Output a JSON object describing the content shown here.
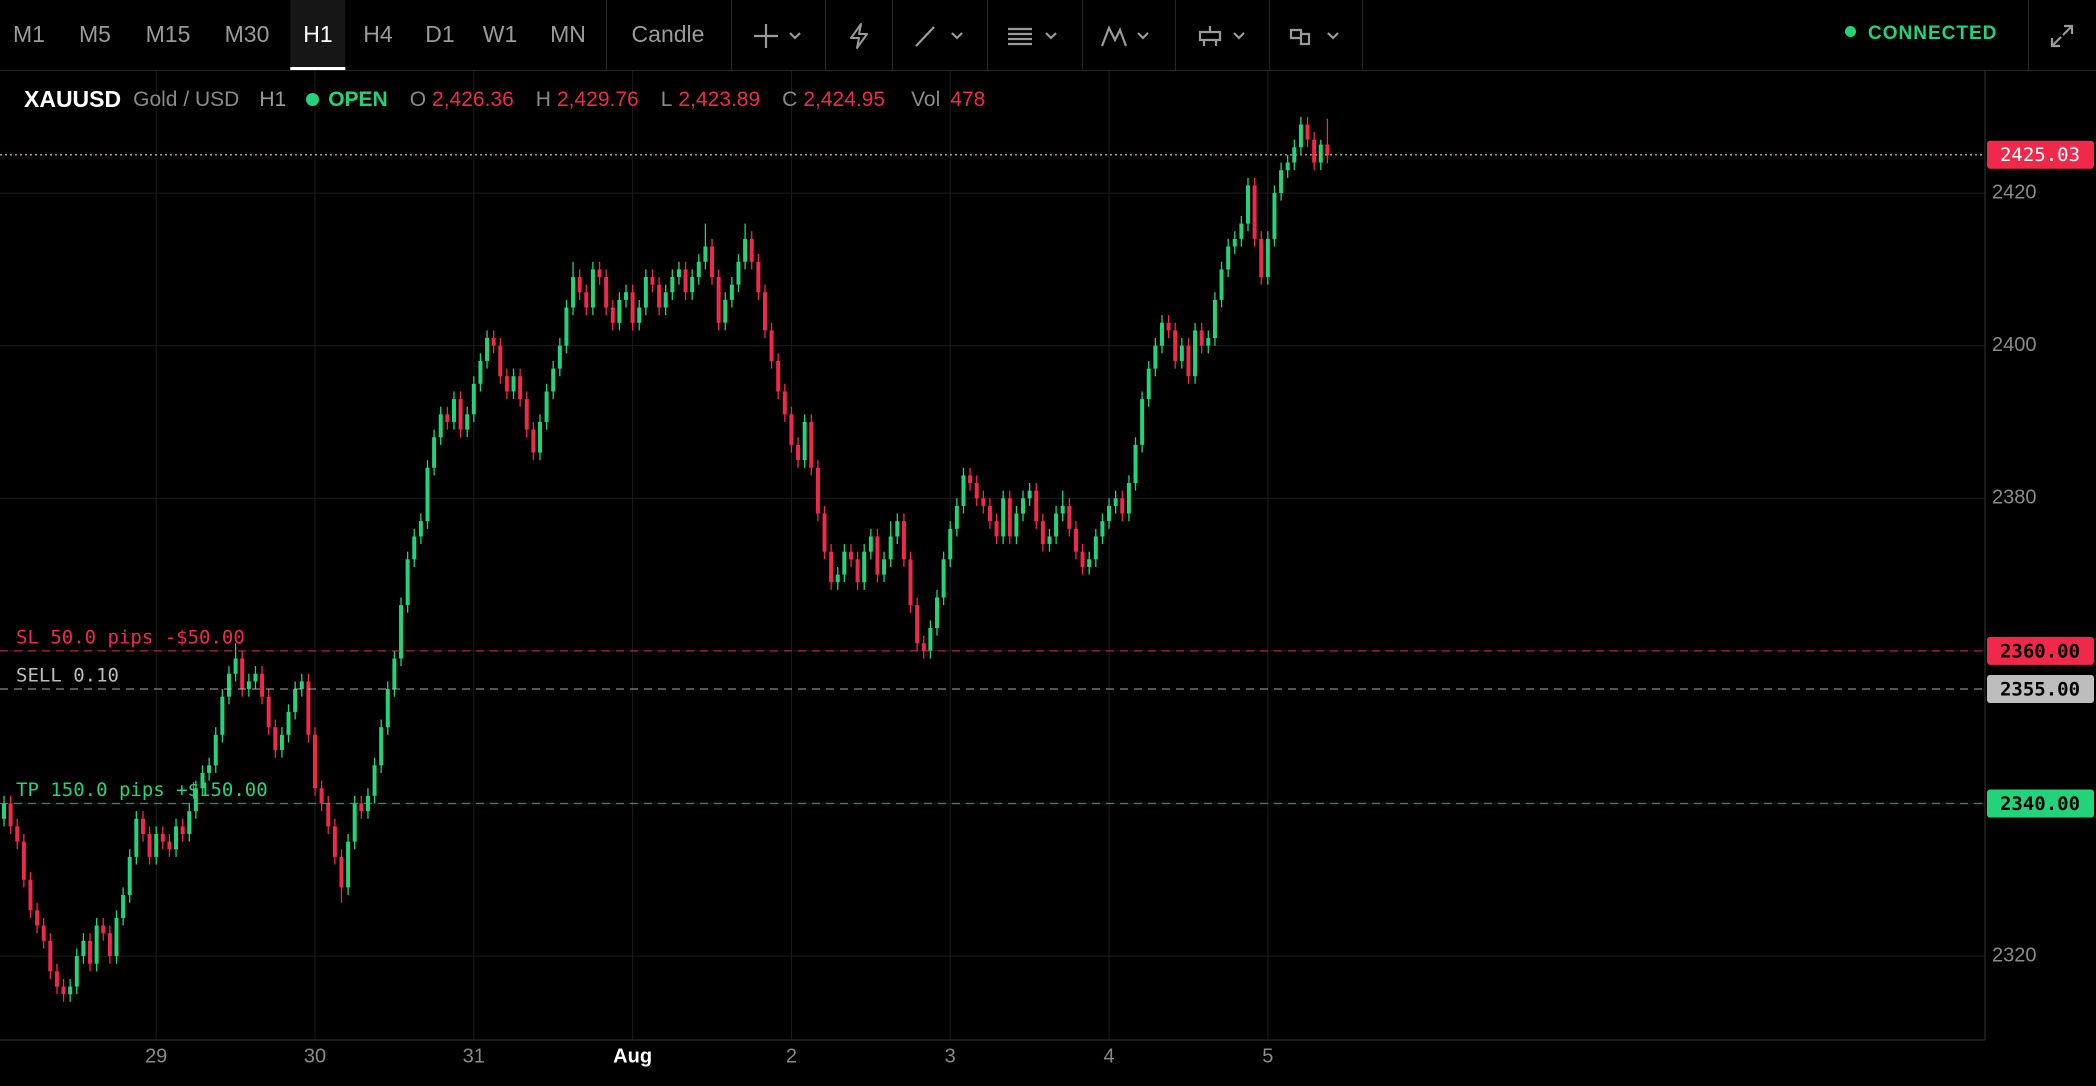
{
  "toolbar": {
    "timeframes": [
      "M1",
      "M5",
      "M15",
      "M30",
      "H1",
      "H4",
      "D1",
      "W1",
      "MN"
    ],
    "active_timeframe": "H1",
    "chart_style": "Candle",
    "status": "CONNECTED"
  },
  "symbol": {
    "ticker": "XAUUSD",
    "name": "Gold / USD",
    "timeframe": "H1",
    "session": "OPEN",
    "ohlc": [
      {
        "key": "O",
        "value": "2,426.36"
      },
      {
        "key": "H",
        "value": "2,429.76"
      },
      {
        "key": "L",
        "value": "2,423.89"
      },
      {
        "key": "C",
        "value": "2,424.95"
      }
    ],
    "volume": {
      "key": "Vol",
      "value": 478
    }
  },
  "chart_data": {
    "type": "candlestick",
    "up_color": "#22d37a",
    "down_color": "#f0284a",
    "grid": true,
    "ylim": [
      2309,
      2436
    ],
    "yticks": [
      2320,
      2340,
      2360,
      2380,
      2400,
      2420
    ],
    "categories": [
      null,
      null,
      null,
      null,
      null,
      null,
      null,
      null,
      null,
      null,
      null,
      null,
      null,
      null,
      null,
      null,
      null,
      null,
      null,
      null,
      null,
      null,
      null,
      "29",
      null,
      null,
      null,
      null,
      null,
      null,
      null,
      null,
      null,
      null,
      null,
      null,
      null,
      null,
      null,
      null,
      null,
      null,
      null,
      null,
      null,
      null,
      null,
      "30",
      null,
      null,
      null,
      null,
      null,
      null,
      null,
      null,
      null,
      null,
      null,
      null,
      null,
      null,
      null,
      null,
      null,
      null,
      null,
      null,
      null,
      null,
      null,
      "31",
      null,
      null,
      null,
      null,
      null,
      null,
      null,
      null,
      null,
      null,
      null,
      null,
      null,
      null,
      null,
      null,
      null,
      null,
      null,
      null,
      null,
      null,
      null,
      "Aug",
      null,
      null,
      null,
      null,
      null,
      null,
      null,
      null,
      null,
      null,
      null,
      null,
      null,
      null,
      null,
      null,
      null,
      null,
      null,
      null,
      null,
      null,
      null,
      "2",
      null,
      null,
      null,
      null,
      null,
      null,
      null,
      null,
      null,
      null,
      null,
      null,
      null,
      null,
      null,
      null,
      null,
      null,
      null,
      null,
      null,
      null,
      null,
      "3",
      null,
      null,
      null,
      null,
      null,
      null,
      null,
      null,
      null,
      null,
      null,
      null,
      null,
      null,
      null,
      null,
      null,
      null,
      null,
      null,
      null,
      null,
      null,
      "4",
      null,
      null,
      null,
      null,
      null,
      null,
      null,
      null,
      null,
      null,
      null,
      null,
      null,
      null,
      null,
      null,
      null,
      null,
      null,
      null,
      null,
      null,
      null,
      "5",
      null,
      null,
      null,
      null,
      null,
      null,
      null,
      null,
      null
    ],
    "open": [
      2338,
      2340,
      2337,
      2335,
      2330,
      2326,
      2324,
      2322,
      2318,
      2316,
      2315,
      2316,
      2320,
      2322,
      2319,
      2324,
      2323,
      2320,
      2325,
      2328,
      2333,
      2338,
      2336,
      2333,
      2336,
      2335,
      2334,
      2337,
      2336,
      2339,
      2342,
      2344,
      2345,
      2349,
      2354,
      2357,
      2359,
      2355,
      2356,
      2357,
      2354,
      2350,
      2347,
      2349,
      2352,
      2355,
      2356,
      2349,
      2342,
      2340,
      2337,
      2333,
      2329,
      2335,
      2340,
      2339,
      2341,
      2345,
      2350,
      2355,
      2359,
      2366,
      2372,
      2375,
      2377,
      2384,
      2388,
      2391,
      2390,
      2393,
      2389,
      2391,
      2395,
      2398,
      2401,
      2400,
      2396,
      2394,
      2396,
      2393,
      2389,
      2386,
      2390,
      2394,
      2397,
      2400,
      2405,
      2409,
      2407,
      2405,
      2410,
      2409,
      2405,
      2403,
      2406,
      2407,
      2403,
      2405,
      2409,
      2408,
      2405,
      2407,
      2409,
      2410,
      2407,
      2409,
      2411,
      2413,
      2409,
      2403,
      2406,
      2408,
      2411,
      2414,
      2411,
      2407,
      2402,
      2398,
      2394,
      2391,
      2387,
      2385,
      2390,
      2384,
      2378,
      2373,
      2369,
      2370,
      2373,
      2372,
      2369,
      2373,
      2375,
      2370,
      2372,
      2375,
      2377,
      2372,
      2366,
      2361,
      2360,
      2363,
      2367,
      2372,
      2376,
      2379,
      2383,
      2382,
      2380,
      2379,
      2377,
      2375,
      2380,
      2375,
      2378,
      2380,
      2381,
      2377,
      2374,
      2375,
      2378,
      2379,
      2376,
      2373,
      2371,
      2372,
      2375,
      2377,
      2379,
      2380,
      2378,
      2382,
      2387,
      2393,
      2397,
      2400,
      2403,
      2402,
      2398,
      2400,
      2396,
      2402,
      2400,
      2401,
      2406,
      2410,
      2413,
      2414,
      2416,
      2421,
      2414,
      2409,
      2414,
      2420,
      2423,
      2424,
      2426,
      2429,
      2427,
      2424,
      2426.36
    ],
    "high": [
      2341,
      2341,
      2338,
      2336,
      2331,
      2327,
      2325,
      2323,
      2319,
      2317,
      2317,
      2321,
      2323,
      2323,
      2325,
      2325,
      2324,
      2326,
      2329,
      2334,
      2339,
      2339,
      2337,
      2337,
      2337,
      2336,
      2338,
      2338,
      2340,
      2343,
      2345,
      2346,
      2350,
      2355,
      2358,
      2361,
      2360,
      2357,
      2358,
      2358,
      2355,
      2351,
      2350,
      2353,
      2356,
      2357,
      2357,
      2350,
      2343,
      2341,
      2338,
      2334,
      2336,
      2341,
      2341,
      2342,
      2346,
      2351,
      2356,
      2360,
      2367,
      2373,
      2376,
      2378,
      2385,
      2389,
      2392,
      2392,
      2394,
      2394,
      2392,
      2396,
      2399,
      2402,
      2402,
      2401,
      2397,
      2397,
      2397,
      2394,
      2390,
      2391,
      2395,
      2398,
      2401,
      2406,
      2411,
      2410,
      2408,
      2411,
      2411,
      2410,
      2406,
      2407,
      2408,
      2408,
      2406,
      2410,
      2410,
      2409,
      2408,
      2410,
      2411,
      2411,
      2410,
      2412,
      2416,
      2414,
      2410,
      2407,
      2409,
      2412,
      2416,
      2415,
      2412,
      2408,
      2403,
      2399,
      2395,
      2392,
      2388,
      2391,
      2391,
      2385,
      2379,
      2374,
      2371,
      2374,
      2374,
      2373,
      2374,
      2376,
      2376,
      2373,
      2377,
      2378,
      2378,
      2373,
      2367,
      2362,
      2364,
      2368,
      2373,
      2377,
      2380,
      2384,
      2384,
      2383,
      2381,
      2380,
      2378,
      2381,
      2381,
      2379,
      2381,
      2382,
      2382,
      2378,
      2376,
      2379,
      2381,
      2380,
      2377,
      2374,
      2373,
      2376,
      2378,
      2380,
      2381,
      2381,
      2383,
      2388,
      2394,
      2398,
      2401,
      2404,
      2404,
      2403,
      2401,
      2401,
      2403,
      2403,
      2402,
      2407,
      2411,
      2414,
      2415,
      2417,
      2422,
      2422,
      2415,
      2415,
      2421,
      2424,
      2425,
      2427,
      2430,
      2430,
      2428,
      2427,
      2429.76
    ],
    "low": [
      2337,
      2336,
      2334,
      2329,
      2325,
      2323,
      2321,
      2317,
      2315,
      2314,
      2314,
      2315,
      2319,
      2318,
      2318,
      2322,
      2319,
      2319,
      2324,
      2327,
      2332,
      2335,
      2332,
      2332,
      2334,
      2333,
      2333,
      2335,
      2335,
      2338,
      2341,
      2343,
      2344,
      2348,
      2353,
      2356,
      2354,
      2354,
      2355,
      2353,
      2349,
      2346,
      2346,
      2348,
      2351,
      2354,
      2348,
      2341,
      2339,
      2336,
      2332,
      2327,
      2328,
      2334,
      2338,
      2338,
      2340,
      2344,
      2349,
      2354,
      2358,
      2365,
      2371,
      2374,
      2376,
      2383,
      2387,
      2389,
      2389,
      2388,
      2388,
      2390,
      2394,
      2397,
      2399,
      2395,
      2393,
      2393,
      2392,
      2388,
      2385,
      2385,
      2389,
      2393,
      2396,
      2399,
      2404,
      2406,
      2404,
      2404,
      2408,
      2404,
      2402,
      2402,
      2405,
      2402,
      2402,
      2404,
      2407,
      2404,
      2404,
      2406,
      2408,
      2406,
      2406,
      2408,
      2410,
      2408,
      2402,
      2402,
      2405,
      2407,
      2410,
      2410,
      2406,
      2401,
      2397,
      2393,
      2390,
      2386,
      2384,
      2384,
      2383,
      2377,
      2372,
      2368,
      2368,
      2369,
      2371,
      2368,
      2368,
      2372,
      2369,
      2369,
      2371,
      2374,
      2371,
      2365,
      2360,
      2359,
      2359,
      2362,
      2366,
      2371,
      2375,
      2378,
      2381,
      2379,
      2378,
      2376,
      2374,
      2374,
      2374,
      2374,
      2377,
      2379,
      2376,
      2373,
      2373,
      2374,
      2377,
      2375,
      2372,
      2370,
      2370,
      2371,
      2374,
      2376,
      2378,
      2377,
      2377,
      2381,
      2386,
      2392,
      2396,
      2399,
      2401,
      2397,
      2397,
      2395,
      2395,
      2399,
      2399,
      2400,
      2405,
      2409,
      2412,
      2413,
      2415,
      2413,
      2408,
      2408,
      2413,
      2419,
      2422,
      2423,
      2425,
      2426,
      2423,
      2423,
      2423.89
    ],
    "close": [
      2340,
      2337,
      2335,
      2330,
      2326,
      2324,
      2322,
      2318,
      2316,
      2315,
      2316,
      2320,
      2322,
      2319,
      2324,
      2323,
      2320,
      2325,
      2328,
      2333,
      2338,
      2336,
      2333,
      2336,
      2335,
      2334,
      2337,
      2336,
      2339,
      2342,
      2344,
      2345,
      2349,
      2354,
      2357,
      2359,
      2355,
      2356,
      2357,
      2354,
      2350,
      2347,
      2349,
      2352,
      2355,
      2356,
      2349,
      2342,
      2340,
      2337,
      2333,
      2329,
      2335,
      2340,
      2339,
      2341,
      2345,
      2350,
      2355,
      2359,
      2366,
      2372,
      2375,
      2377,
      2384,
      2388,
      2391,
      2390,
      2393,
      2389,
      2391,
      2395,
      2398,
      2401,
      2400,
      2396,
      2394,
      2396,
      2393,
      2389,
      2386,
      2390,
      2394,
      2397,
      2400,
      2405,
      2409,
      2407,
      2405,
      2410,
      2409,
      2405,
      2403,
      2406,
      2407,
      2403,
      2405,
      2409,
      2408,
      2405,
      2407,
      2409,
      2410,
      2407,
      2409,
      2411,
      2413,
      2409,
      2403,
      2406,
      2408,
      2411,
      2414,
      2411,
      2407,
      2402,
      2398,
      2394,
      2391,
      2387,
      2385,
      2390,
      2384,
      2378,
      2373,
      2369,
      2370,
      2373,
      2372,
      2369,
      2373,
      2375,
      2370,
      2372,
      2375,
      2377,
      2372,
      2366,
      2361,
      2360,
      2363,
      2367,
      2372,
      2376,
      2379,
      2383,
      2382,
      2380,
      2379,
      2377,
      2375,
      2380,
      2375,
      2378,
      2380,
      2381,
      2377,
      2374,
      2375,
      2378,
      2379,
      2376,
      2373,
      2371,
      2372,
      2375,
      2377,
      2379,
      2380,
      2378,
      2382,
      2387,
      2393,
      2397,
      2400,
      2403,
      2402,
      2398,
      2400,
      2396,
      2402,
      2400,
      2401,
      2406,
      2410,
      2413,
      2414,
      2416,
      2421,
      2414,
      2409,
      2414,
      2420,
      2423,
      2424,
      2426,
      2429,
      2427,
      2424,
      2426.36,
      2424.95
    ],
    "price_line": {
      "value": 2425.03,
      "color": "#f0284a"
    },
    "order_lines": [
      {
        "label": "SL 50.0 pips -$50.00",
        "price": {
          "value": 2360,
          "label": "2360.00"
        },
        "color": "#f0284a"
      },
      {
        "label": "SELL 0.10",
        "price": {
          "value": 2355,
          "label": "2355.00"
        },
        "color": "#bdbdbd"
      },
      {
        "label": "TP 150.0 pips +$150.00",
        "price": {
          "value": 2340,
          "label": "2340.00"
        },
        "color": "#22d37a"
      }
    ]
  }
}
